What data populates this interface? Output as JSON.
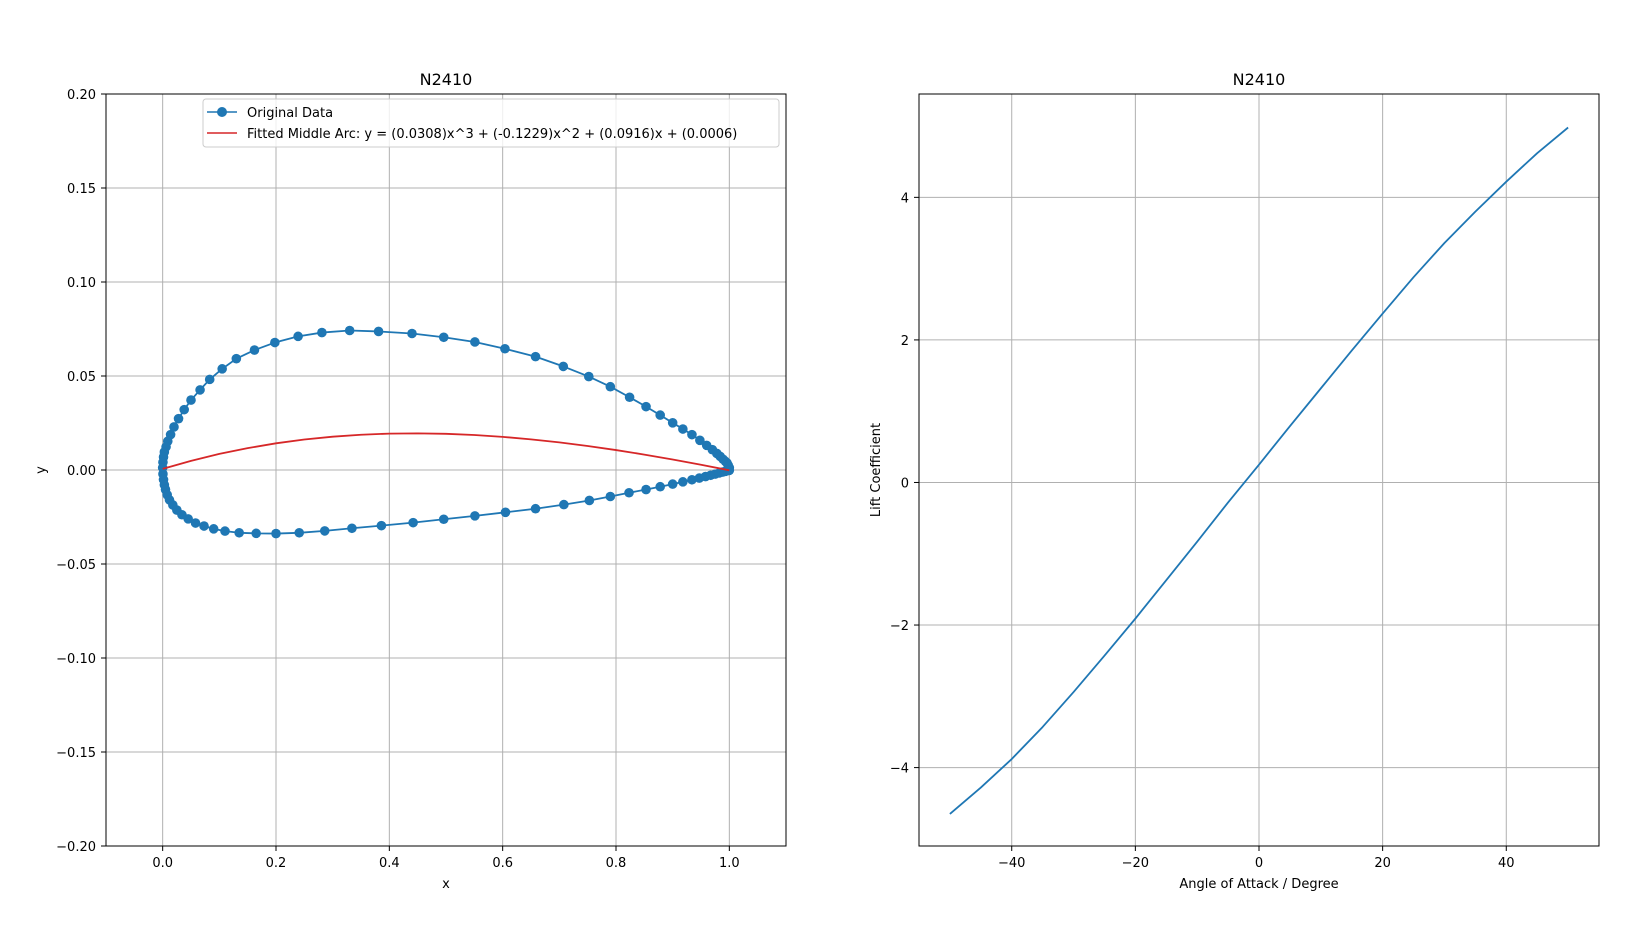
{
  "chart_data": [
    {
      "type": "line",
      "title": "N2410",
      "xlabel": "x",
      "ylabel": "y",
      "xlim": [
        -0.1,
        1.1
      ],
      "ylim": [
        -0.2,
        0.2
      ],
      "xticks": [
        0.0,
        0.2,
        0.4,
        0.6,
        0.8,
        1.0
      ],
      "xtick_labels": [
        "0.0",
        "0.2",
        "0.4",
        "0.6",
        "0.8",
        "1.0"
      ],
      "yticks": [
        -0.2,
        -0.15,
        -0.1,
        -0.05,
        0.0,
        0.05,
        0.1,
        0.15,
        0.2
      ],
      "ytick_labels": [
        "−0.20",
        "−0.15",
        "−0.10",
        "−0.05",
        "0.00",
        "0.05",
        "0.10",
        "0.15",
        "0.20"
      ],
      "grid": true,
      "legend_placement": "upper-right",
      "series": [
        {
          "name": "Original Data",
          "color": "#1f77b4",
          "marker": "circle",
          "x": [
            1.0,
            0.998,
            0.996,
            0.993,
            0.989,
            0.984,
            0.978,
            0.97,
            0.96,
            0.948,
            0.934,
            0.918,
            0.9,
            0.878,
            0.853,
            0.824,
            0.79,
            0.752,
            0.707,
            0.658,
            0.604,
            0.551,
            0.496,
            0.44,
            0.381,
            0.33,
            0.281,
            0.239,
            0.198,
            0.162,
            0.13,
            0.105,
            0.083,
            0.066,
            0.05,
            0.038,
            0.028,
            0.02,
            0.014,
            0.009,
            0.006,
            0.003,
            0.0015,
            0.0005,
            0.0,
            0.0005,
            0.0015,
            0.003,
            0.005,
            0.008,
            0.012,
            0.018,
            0.025,
            0.034,
            0.045,
            0.058,
            0.073,
            0.09,
            0.11,
            0.135,
            0.165,
            0.2,
            0.241,
            0.286,
            0.334,
            0.386,
            0.442,
            0.496,
            0.551,
            0.605,
            0.658,
            0.708,
            0.753,
            0.79,
            0.823,
            0.853,
            0.878,
            0.9,
            0.918,
            0.934,
            0.947,
            0.958,
            0.967,
            0.975,
            0.982,
            0.988,
            0.993,
            0.997,
            1.0
          ],
          "y": [
            0.0012,
            0.0025,
            0.0037,
            0.0046,
            0.0057,
            0.0072,
            0.0088,
            0.0108,
            0.0131,
            0.0158,
            0.0188,
            0.0218,
            0.0251,
            0.0292,
            0.0337,
            0.0387,
            0.0443,
            0.0497,
            0.0551,
            0.0603,
            0.0645,
            0.0681,
            0.0706,
            0.0726,
            0.0737,
            0.0742,
            0.0731,
            0.0711,
            0.0678,
            0.0638,
            0.0592,
            0.0538,
            0.0482,
            0.0426,
            0.0372,
            0.0321,
            0.0273,
            0.0229,
            0.0188,
            0.0153,
            0.0123,
            0.0096,
            0.0069,
            0.0041,
            0.0012,
            -0.0021,
            -0.0051,
            -0.0079,
            -0.0104,
            -0.0132,
            -0.0159,
            -0.0186,
            -0.0213,
            -0.0238,
            -0.026,
            -0.0282,
            -0.0298,
            -0.0313,
            -0.0325,
            -0.0334,
            -0.0337,
            -0.0338,
            -0.0334,
            -0.0324,
            -0.031,
            -0.0296,
            -0.028,
            -0.0262,
            -0.0244,
            -0.0225,
            -0.0206,
            -0.0184,
            -0.0162,
            -0.0141,
            -0.0121,
            -0.0104,
            -0.0089,
            -0.0075,
            -0.0063,
            -0.0052,
            -0.0043,
            -0.0035,
            -0.0028,
            -0.0022,
            -0.0016,
            -0.0011,
            -0.0007,
            -0.0004,
            -0.0002
          ]
        },
        {
          "name": "Fitted Middle Arc: y = (0.0308)x^3 + (-0.1229)x^2 + (0.0916)x + (0.0006)",
          "color": "#d62728",
          "marker": "none",
          "coefficients": [
            0.0308,
            -0.1229,
            0.0916,
            0.0006
          ],
          "x": [
            0.0,
            0.05,
            0.1,
            0.15,
            0.2,
            0.25,
            0.3,
            0.35,
            0.4,
            0.45,
            0.5,
            0.55,
            0.6,
            0.65,
            0.7,
            0.75,
            0.8,
            0.85,
            0.9,
            0.95,
            1.0
          ],
          "y": [
            0.0006,
            0.00487,
            0.00855,
            0.01164,
            0.01419,
            0.01621,
            0.01772,
            0.01876,
            0.01935,
            0.0195,
            0.01925,
            0.01862,
            0.01763,
            0.01631,
            0.01468,
            0.01277,
            0.0106,
            0.0082,
            0.00559,
            0.00279,
            -0.00017
          ]
        }
      ]
    },
    {
      "type": "line",
      "title": "N2410",
      "xlabel": "Angle of Attack / Degree",
      "ylabel": "Lift Coefficient",
      "xlim": [
        -55,
        55
      ],
      "ylim": [
        -5.1,
        5.45
      ],
      "xticks": [
        -40,
        -20,
        0,
        20,
        40
      ],
      "xtick_labels": [
        "−40",
        "−20",
        "0",
        "20",
        "40"
      ],
      "yticks": [
        -4,
        -2,
        0,
        2,
        4
      ],
      "ytick_labels": [
        "−4",
        "−2",
        "0",
        "2",
        "4"
      ],
      "grid": true,
      "series": [
        {
          "color": "#1f77b4",
          "marker": "none",
          "x": [
            -50,
            -45,
            -40,
            -35,
            -30,
            -25,
            -20,
            -15,
            -10,
            -5,
            0,
            5,
            10,
            15,
            20,
            25,
            30,
            35,
            40,
            45,
            50
          ],
          "y": [
            -4.65,
            -4.28,
            -3.88,
            -3.43,
            -2.94,
            -2.43,
            -1.91,
            -1.37,
            -0.83,
            -0.28,
            0.25,
            0.79,
            1.32,
            1.85,
            2.37,
            2.88,
            3.36,
            3.8,
            4.22,
            4.62,
            4.98
          ]
        }
      ]
    }
  ]
}
